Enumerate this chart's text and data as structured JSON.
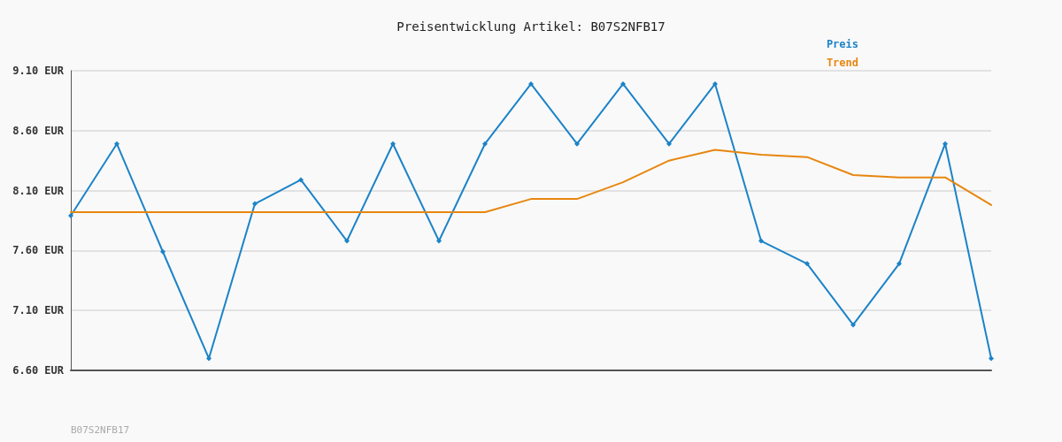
{
  "chart_data": {
    "type": "line",
    "title": "Preisentwicklung Artikel: B07S2NFB17",
    "categories": [
      null,
      null,
      null,
      null,
      null,
      null,
      null,
      null,
      null,
      null,
      null,
      null,
      null,
      null,
      null,
      null,
      null,
      null,
      null,
      null,
      null
    ],
    "series": [
      {
        "name": "Preis",
        "color": "#1c83c8",
        "marker": "diamond",
        "values": [
          7.89,
          8.49,
          7.59,
          6.7,
          7.99,
          8.19,
          7.68,
          8.49,
          7.68,
          8.49,
          8.99,
          8.49,
          8.99,
          8.49,
          8.99,
          7.68,
          7.49,
          6.98,
          7.49,
          8.49,
          6.7
        ]
      },
      {
        "name": "Trend",
        "color": "#e8860f",
        "marker": "none",
        "values": [
          7.92,
          7.92,
          7.92,
          7.92,
          7.92,
          7.92,
          7.92,
          7.92,
          7.92,
          7.92,
          8.03,
          8.03,
          8.17,
          8.35,
          8.44,
          8.4,
          8.38,
          8.23,
          8.21,
          8.21,
          7.98
        ]
      }
    ],
    "ylim": [
      6.6,
      9.1
    ],
    "yticks": [
      {
        "value": 6.6,
        "label": "6.60 EUR"
      },
      {
        "value": 7.1,
        "label": "7.10 EUR"
      },
      {
        "value": 7.6,
        "label": "7.60 EUR"
      },
      {
        "value": 8.1,
        "label": "8.10 EUR"
      },
      {
        "value": 8.6,
        "label": "8.60 EUR"
      },
      {
        "value": 9.1,
        "label": "9.10 EUR"
      }
    ],
    "grid": "y",
    "legend": "top right",
    "tick_labels": "y",
    "line_style": "solid",
    "annotations": [
      "B07S2NFB17"
    ]
  }
}
